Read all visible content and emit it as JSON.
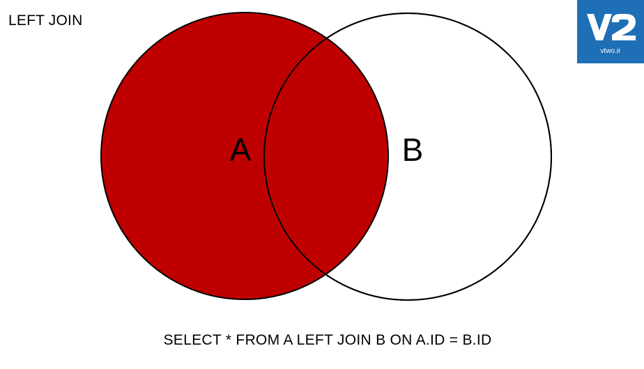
{
  "title": "LEFT JOIN",
  "sets": {
    "a": {
      "label": "A"
    },
    "b": {
      "label": "B"
    }
  },
  "highlight_color": "#bf0000",
  "logo": {
    "mark": "V2",
    "domain": "vtwo.ir",
    "background": "#1e6fb6"
  },
  "query": "SELECT * FROM A LEFT JOIN B ON A.ID = B.ID"
}
